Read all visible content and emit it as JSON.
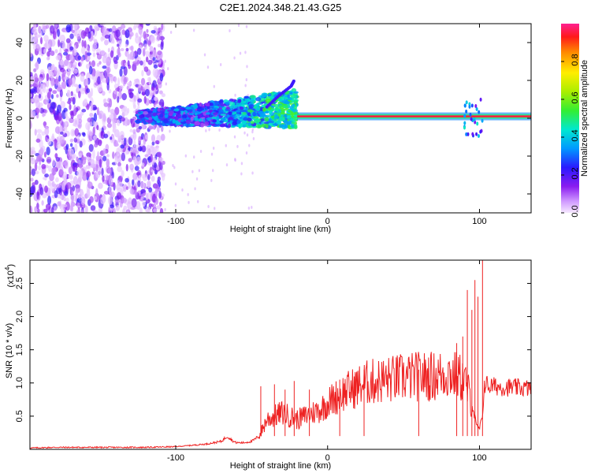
{
  "title": "C2E1.2024.348.21.43.G25",
  "chart_data": [
    {
      "type": "heatmap",
      "xlabel": "Height of straight line (km)",
      "ylabel": "Frequency (Hz)",
      "xlim": [
        -196,
        134
      ],
      "ylim": [
        -50,
        50
      ],
      "xticks": [
        -100,
        0,
        100
      ],
      "yticks": [
        -40,
        -20,
        0,
        20,
        40
      ],
      "colorbar": {
        "label": "Normalized spectral amplitude",
        "range": [
          0.0,
          1.0
        ],
        "ticks": [
          0.0,
          0.2,
          0.4,
          0.6,
          0.8
        ],
        "tick_labels": [
          "0.0",
          "0.2",
          "0.4",
          "0.6",
          "0.8"
        ]
      },
      "features": {
        "steady_line_frequency_hz": 1,
        "steady_line_start_km": -20,
        "noisy_region_end_km": -108,
        "band_onset_km": -125,
        "branch_line": {
          "x": [
            -40,
            -32,
            -24,
            -22
          ],
          "y": [
            6,
            12,
            17,
            20
          ]
        }
      }
    },
    {
      "type": "line",
      "xlabel": "Height of straight line (km)",
      "ylabel": "SNR (10 * v/v)",
      "y_multiplier": "(x10",
      "y_multiplier_exp": "4",
      "xlim": [
        -196,
        134
      ],
      "ylim": [
        0,
        2.85
      ],
      "xticks": [
        -100,
        0,
        100
      ],
      "yticks": [
        0.5,
        1.0,
        1.5,
        2.0,
        2.5
      ],
      "ytick_labels": [
        "0.5",
        "1.0",
        "1.5",
        "2.0",
        "2.5"
      ],
      "series": [
        {
          "color": "#ee2222",
          "x": [
            -196,
            -180,
            -160,
            -140,
            -120,
            -100,
            -90,
            -80,
            -70,
            -66,
            -62,
            -60,
            -55,
            -50,
            -45,
            -40,
            -35,
            -30,
            -25,
            -20,
            -15,
            -10,
            -5,
            0,
            5,
            10,
            15,
            20,
            25,
            30,
            40,
            50,
            60,
            70,
            80,
            85,
            90,
            95,
            98,
            100,
            102,
            103,
            104,
            106,
            110,
            120,
            134
          ],
          "values": [
            0.02,
            0.03,
            0.03,
            0.03,
            0.03,
            0.04,
            0.06,
            0.08,
            0.12,
            0.2,
            0.12,
            0.1,
            0.1,
            0.12,
            0.2,
            0.45,
            0.5,
            0.55,
            0.5,
            0.45,
            0.5,
            0.55,
            0.6,
            0.7,
            0.78,
            0.85,
            0.9,
            0.95,
            1.0,
            1.02,
            1.05,
            1.08,
            1.1,
            1.1,
            1.15,
            1.1,
            1.05,
            0.7,
            0.35,
            0.3,
            0.5,
            0.95,
            1.0,
            0.95,
            0.95,
            0.93,
            0.92
          ],
          "spikes": {
            "x": [
              -44,
              -35,
              -28,
              -22,
              -12,
              8,
              24,
              60,
              85,
              89,
              92,
              95,
              97,
              99,
              102
            ],
            "y": [
              0.95,
              0.98,
              0.9,
              1.03,
              0.9,
              1.05,
              1.2,
              1.2,
              1.6,
              1.7,
              2.4,
              2.1,
              2.55,
              2.3,
              2.85
            ]
          }
        }
      ]
    }
  ]
}
